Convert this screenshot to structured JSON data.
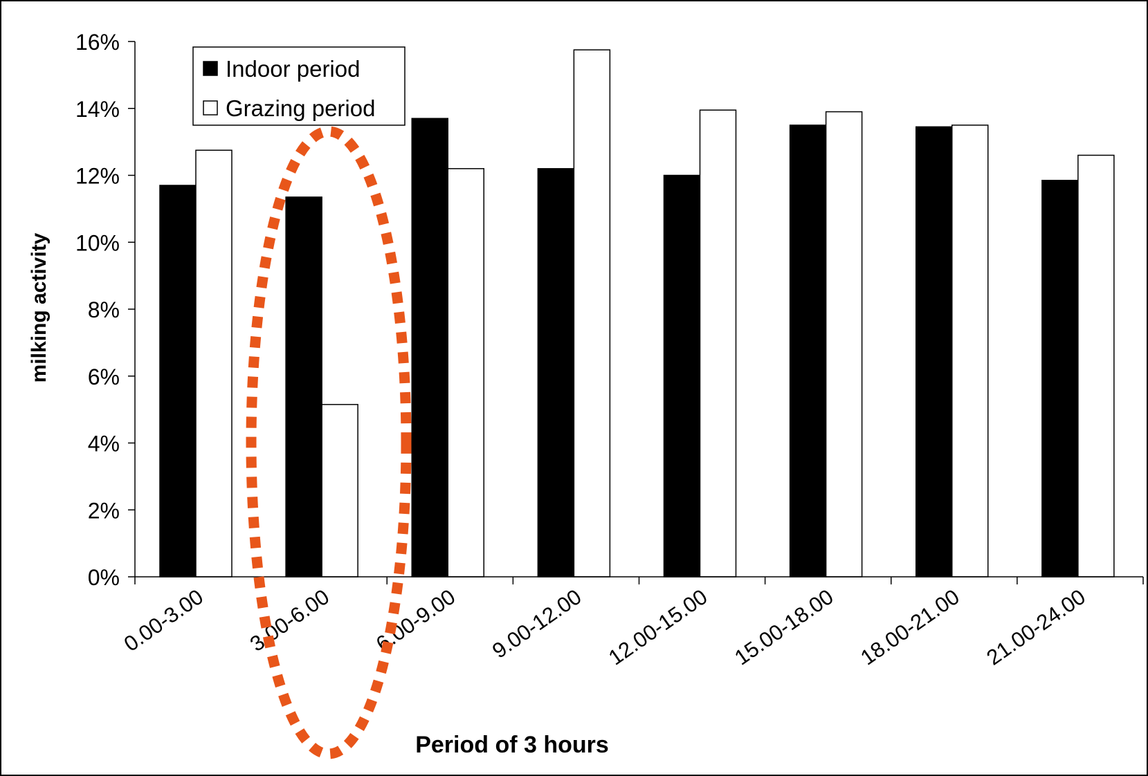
{
  "chart_data": {
    "type": "bar",
    "title": "",
    "xlabel": "Period of 3 hours",
    "ylabel": "milking activity",
    "categories": [
      "0.00-3.00",
      "3.00-6.00",
      "6.00-9.00",
      "9.00-12.00",
      "12.00-15.00",
      "15.00-18.00",
      "18.00-21.00",
      "21.00-24.00"
    ],
    "series": [
      {
        "name": "Indoor period",
        "values": [
          11.7,
          11.35,
          13.7,
          12.2,
          12.0,
          13.5,
          13.45,
          11.85
        ],
        "color": "#000000"
      },
      {
        "name": "Grazing period",
        "values": [
          12.75,
          5.15,
          12.2,
          15.75,
          13.95,
          13.9,
          13.5,
          12.6
        ],
        "color": "#ffffff"
      }
    ],
    "ylim": [
      0,
      16
    ],
    "yticks": [
      0,
      2,
      4,
      6,
      8,
      10,
      12,
      14,
      16
    ],
    "ytick_labels": [
      "0%",
      "2%",
      "4%",
      "6%",
      "8%",
      "10%",
      "12%",
      "14%",
      "16%"
    ],
    "grid": false,
    "legend_position": "top-left",
    "annotation": {
      "shape": "dotted ellipse",
      "highlights": "3.00-6.00",
      "color": "#e8561a"
    }
  }
}
